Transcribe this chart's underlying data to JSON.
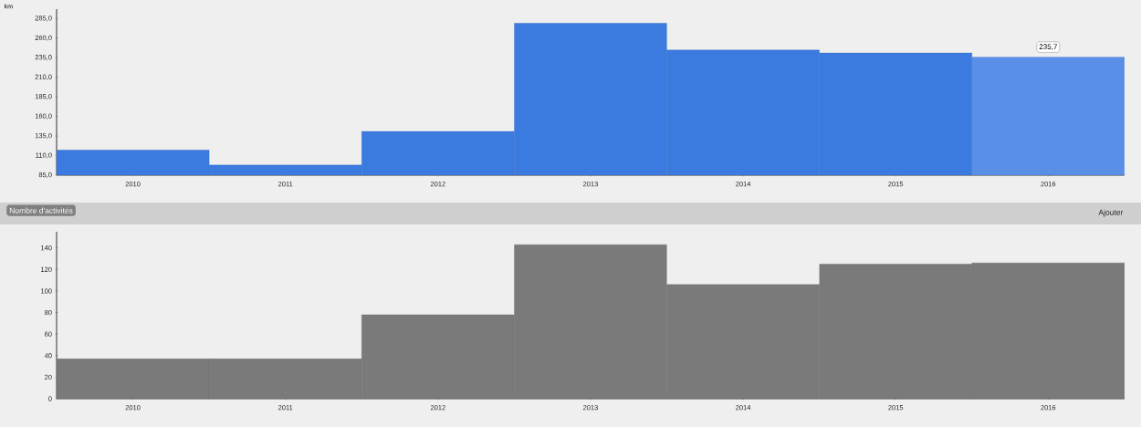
{
  "chart_data": [
    {
      "type": "bar",
      "ylabel": "km",
      "categories": [
        "2010",
        "2011",
        "2012",
        "2013",
        "2014",
        "2015",
        "2016"
      ],
      "values": [
        117,
        98,
        141,
        279,
        245,
        241,
        235.7
      ],
      "colors": [
        "#3b7be0",
        "#3b7be0",
        "#3b7be0",
        "#3b7be0",
        "#3b7be0",
        "#3b7be0",
        "#5a8fe8"
      ],
      "ylim": [
        85,
        297
      ],
      "yticks": [
        {
          "value": 85,
          "label": "85,0"
        },
        {
          "value": 110,
          "label": "110,0"
        },
        {
          "value": 135,
          "label": "135,0"
        },
        {
          "value": 160,
          "label": "160,0"
        },
        {
          "value": 185,
          "label": "185,0"
        },
        {
          "value": 210,
          "label": "210,0"
        },
        {
          "value": 235,
          "label": "235,0"
        },
        {
          "value": 260,
          "label": "260,0"
        },
        {
          "value": 285,
          "label": "285,0"
        }
      ],
      "annotations": [
        {
          "text": "235,7",
          "x": "2016",
          "y": 235.7
        }
      ]
    },
    {
      "type": "bar",
      "title": "Nombre d'activités",
      "categories": [
        "2010",
        "2011",
        "2012",
        "2013",
        "2014",
        "2015",
        "2016"
      ],
      "values": [
        37,
        37,
        78,
        143,
        106,
        125,
        126
      ],
      "colors": [
        "#7a7a7a",
        "#7a7a7a",
        "#7a7a7a",
        "#7a7a7a",
        "#7a7a7a",
        "#7a7a7a",
        "#7a7a7a"
      ],
      "ylim": [
        0,
        155
      ],
      "yticks": [
        0,
        20,
        40,
        60,
        80,
        100,
        120,
        140
      ],
      "annotations": [
        "Ajouter"
      ]
    }
  ]
}
